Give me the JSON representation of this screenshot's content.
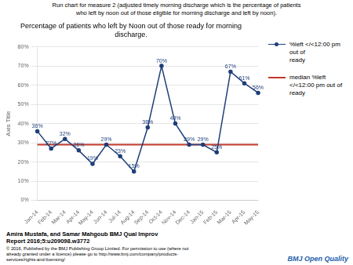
{
  "chart_data": {
    "type": "line",
    "title": "Run chart for measure 2 (adjusted timely morning discharge which is the percentage of patients\nwho left by noon out of those eligible for morning discharge and left by noon).",
    "subtitle": "Percentage of patients who left by Noon out of those ready for morning\ndischarge.",
    "y_label": "Axis Title",
    "categories": [
      "Jan-14",
      "Feb-14",
      "Mar-14",
      "Apr-14",
      "May-14",
      "Jun-14",
      "Jul-14",
      "Aug-14",
      "Sep-14",
      "Oct-14",
      "Nov-14",
      "Dec-14",
      "Jan-15",
      "Feb-15",
      "Mar-15",
      "Apr-15",
      "May-15"
    ],
    "series": [
      {
        "name": "%left </<12:00 pm out of\nready",
        "color": "#1F3E7A",
        "marker": "circle",
        "line_style": "solid",
        "values": [
          36,
          27,
          32,
          26,
          19,
          29,
          23,
          15,
          38,
          70,
          40,
          29,
          29,
          25,
          67,
          61,
          56
        ],
        "value_labels": [
          "36%",
          "27%",
          "32%",
          "26%",
          "19%",
          "29%",
          "23%",
          "15%",
          "38%",
          "70%",
          "40%",
          "29%",
          "29%",
          "25%",
          "67%",
          "61%",
          "56%"
        ]
      },
      {
        "name": "median %left\n</<12:00 pm out of\nready",
        "color": "#C0392B",
        "marker": "none",
        "line_style": "solid",
        "values": [
          29,
          29,
          29,
          29,
          29,
          29,
          29,
          29,
          29,
          29,
          29,
          29,
          29,
          29,
          29,
          29,
          29
        ]
      }
    ],
    "ylim": [
      0,
      80
    ],
    "yticks": [
      {
        "value": 0,
        "label": "0%"
      },
      {
        "value": 10,
        "label": "10%"
      },
      {
        "value": 20,
        "label": "20%"
      },
      {
        "value": 30,
        "label": "30%"
      },
      {
        "value": 40,
        "label": "40%"
      },
      {
        "value": 50,
        "label": "50%"
      },
      {
        "value": 60,
        "label": "60%"
      },
      {
        "value": 70,
        "label": "70%"
      },
      {
        "value": 80,
        "label": "80%"
      }
    ],
    "grid": true,
    "legend": "right",
    "data_labels": true,
    "annotations": [
      {
        "text": "Amira Mustafa, and Samar Mahgoub BMJ Qual Improv\nReport 2016;5:u209098.w3772"
      },
      {
        "text": "© 2016, Published by the BMJ Publishing Group Limited. For permission to use (where not\nalready granted under a licence) please go to http://www.bmj.com/company/products-\nservices/rights-and-licensing/"
      },
      {
        "text": "BMJ Open Quality",
        "color": "#1F5FAD"
      }
    ]
  }
}
